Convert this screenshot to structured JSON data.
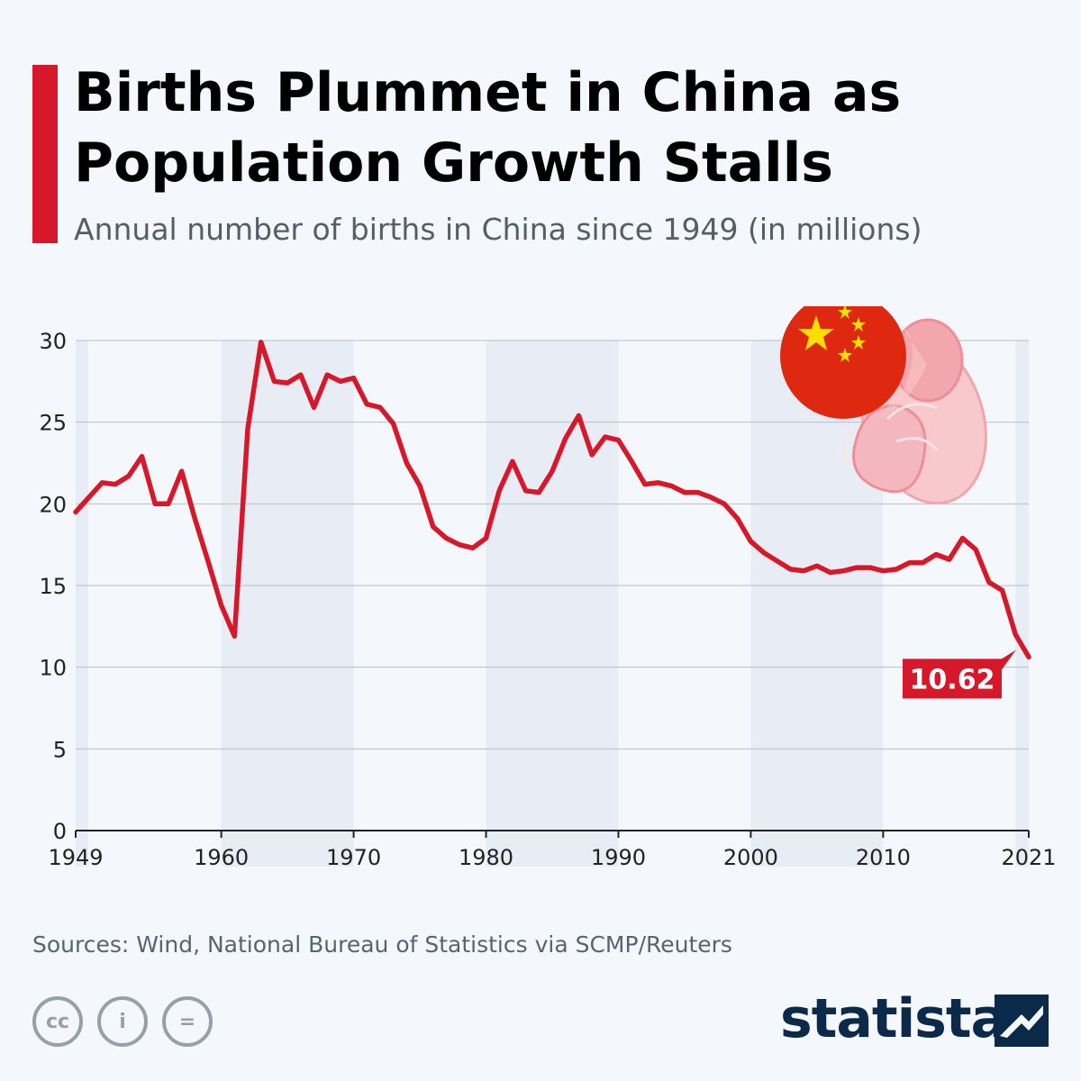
{
  "header": {
    "title": "Births Plummet in China as Population Growth Stalls",
    "subtitle": "Annual number of births in China since 1949 (in millions)"
  },
  "colors": {
    "accent": "#d7182a",
    "line": "#d7182a",
    "shade": "#e8edf5",
    "grid": "#b7bec8",
    "brand": "#0b2a4a"
  },
  "chart_data": {
    "type": "line",
    "title": "Births Plummet in China as Population Growth Stalls",
    "subtitle": "Annual number of births in China since 1949 (in millions)",
    "xlabel": "",
    "ylabel": "",
    "xlim": [
      1949,
      2021
    ],
    "ylim": [
      0,
      30
    ],
    "y_ticks": [
      0,
      5,
      10,
      15,
      20,
      25,
      30
    ],
    "x_ticks": [
      1949,
      1960,
      1970,
      1980,
      1990,
      2000,
      2010,
      2021
    ],
    "grid": true,
    "shaded_decades": [
      [
        1960,
        1970
      ],
      [
        1980,
        1990
      ],
      [
        2000,
        2010
      ],
      [
        2020,
        2021
      ]
    ],
    "x": [
      1949,
      1950,
      1951,
      1952,
      1953,
      1954,
      1955,
      1956,
      1957,
      1958,
      1959,
      1960,
      1961,
      1962,
      1963,
      1964,
      1965,
      1966,
      1967,
      1968,
      1969,
      1970,
      1971,
      1972,
      1973,
      1974,
      1975,
      1976,
      1977,
      1978,
      1979,
      1980,
      1981,
      1982,
      1983,
      1984,
      1985,
      1986,
      1987,
      1988,
      1989,
      1990,
      1991,
      1992,
      1993,
      1994,
      1995,
      1996,
      1997,
      1998,
      1999,
      2000,
      2001,
      2002,
      2003,
      2004,
      2005,
      2006,
      2007,
      2008,
      2009,
      2010,
      2011,
      2012,
      2013,
      2014,
      2015,
      2016,
      2017,
      2018,
      2019,
      2020,
      2021
    ],
    "series": [
      {
        "values": [
          19.5,
          20.4,
          21.3,
          21.2,
          21.7,
          22.9,
          20.0,
          20.0,
          22.0,
          19.1,
          16.5,
          13.8,
          11.9,
          24.6,
          29.9,
          27.5,
          27.4,
          27.9,
          25.9,
          27.9,
          27.5,
          27.7,
          26.1,
          25.9,
          24.9,
          22.5,
          21.1,
          18.6,
          17.9,
          17.5,
          17.3,
          17.9,
          20.8,
          22.6,
          20.8,
          20.7,
          22.0,
          24.0,
          25.4,
          23.0,
          24.1,
          23.9,
          22.6,
          21.2,
          21.3,
          21.1,
          20.7,
          20.7,
          20.4,
          20.0,
          19.1,
          17.7,
          17.0,
          16.5,
          16.0,
          15.9,
          16.2,
          15.8,
          15.9,
          16.1,
          16.1,
          15.9,
          16.0,
          16.4,
          16.4,
          16.9,
          16.6,
          17.9,
          17.2,
          15.2,
          14.7,
          12.0,
          10.62
        ]
      }
    ],
    "annotations": [
      {
        "x": 2021,
        "y": 10.62,
        "label": "10.62"
      }
    ]
  },
  "footer": {
    "sources": "Sources: Wind, National Bureau of Statistics via SCMP/Reuters",
    "license_icons": [
      {
        "name": "cc-icon",
        "glyph": "cc"
      },
      {
        "name": "attribution-icon",
        "glyph": "i"
      },
      {
        "name": "no-derivatives-icon",
        "glyph": "="
      }
    ],
    "brand": "statista"
  }
}
